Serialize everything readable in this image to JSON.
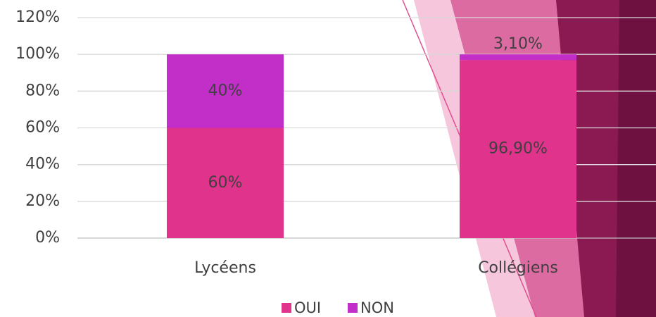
{
  "chart_data": {
    "type": "stacked_bar",
    "categories": [
      "Lycéens",
      "Collégiens"
    ],
    "series": [
      {
        "name": "OUI",
        "color": "#e0338c",
        "values": [
          60,
          96.9
        ],
        "value_labels": [
          "60%",
          "96,90%"
        ]
      },
      {
        "name": "NON",
        "color": "#c12fc8",
        "values": [
          40,
          3.1
        ],
        "value_labels": [
          "40%",
          "3,10%"
        ]
      }
    ],
    "ylim": [
      0,
      120
    ],
    "yticks": [
      {
        "value": 0,
        "label": "0%"
      },
      {
        "value": 20,
        "label": "20%"
      },
      {
        "value": 40,
        "label": "40%"
      },
      {
        "value": 60,
        "label": "60%"
      },
      {
        "value": 80,
        "label": "80%"
      },
      {
        "value": 100,
        "label": "100%"
      },
      {
        "value": 120,
        "label": "120%"
      }
    ],
    "grid": true,
    "legend": "bottom"
  }
}
